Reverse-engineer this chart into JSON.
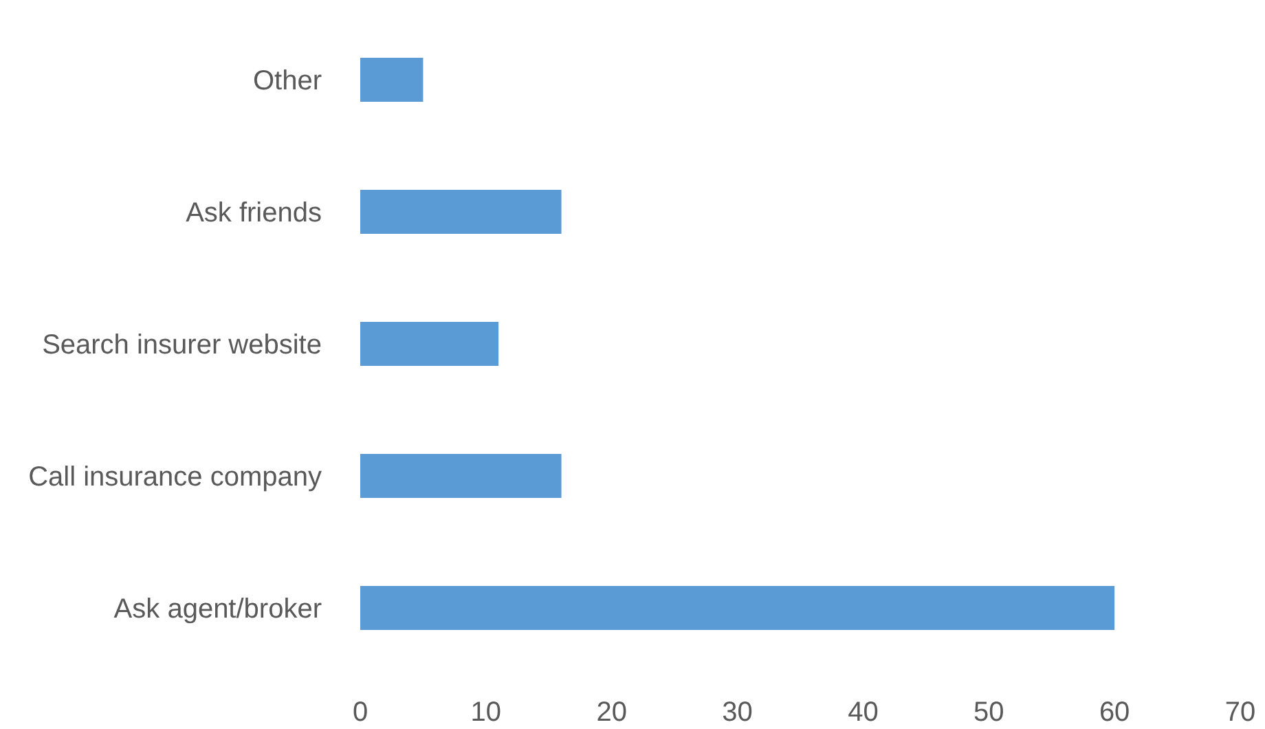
{
  "chart_data": {
    "type": "bar",
    "orientation": "horizontal",
    "categories": [
      "Other",
      "Ask friends",
      "Search insurer website",
      "Call insurance company",
      "Ask agent/broker"
    ],
    "values": [
      5,
      16,
      11,
      16,
      60
    ],
    "color": "#5b9bd5",
    "xlim": [
      0,
      70
    ],
    "xticks": [
      0,
      10,
      20,
      30,
      40,
      50,
      60,
      70
    ],
    "grid": false,
    "legend": false
  }
}
